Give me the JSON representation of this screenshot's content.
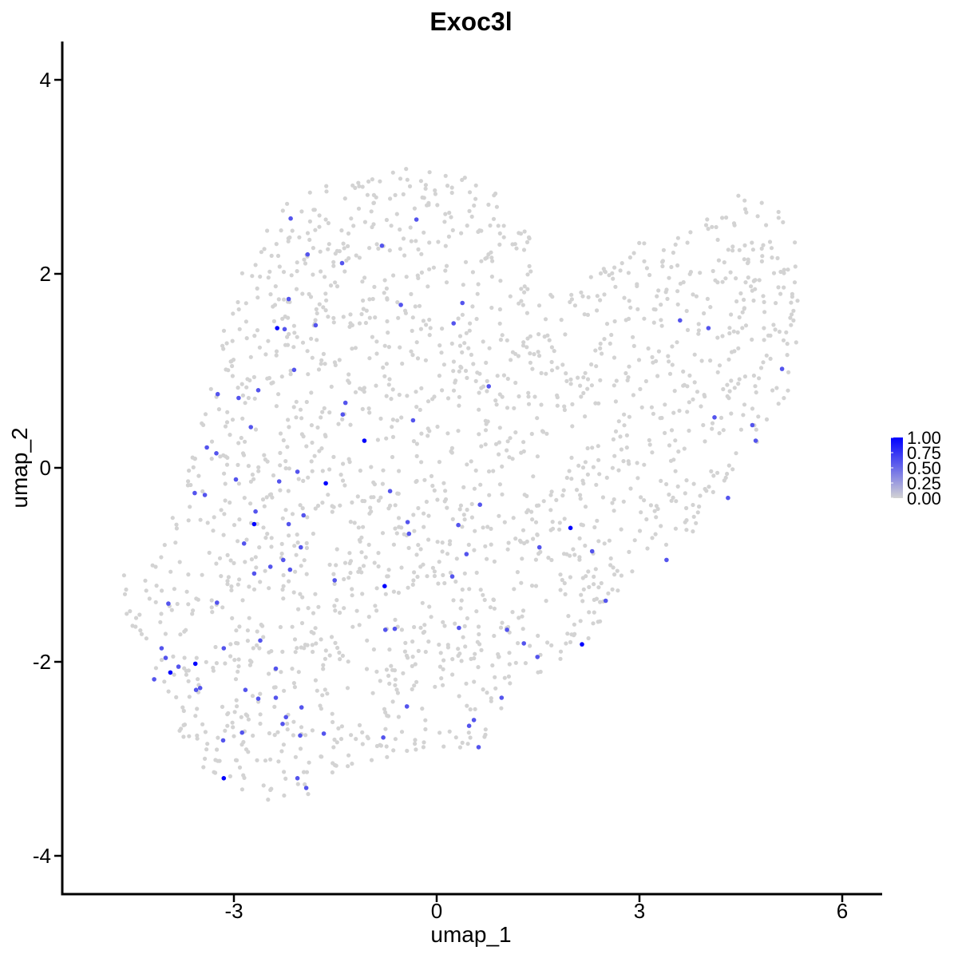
{
  "chart_data": {
    "type": "scatter",
    "title": "Exoc3l",
    "xlabel": "umap_1",
    "ylabel": "umap_2",
    "xlim": [
      -5.5,
      6.6
    ],
    "ylim": [
      -4.4,
      4.4
    ],
    "x_ticks": [
      -3,
      0,
      3,
      6
    ],
    "y_ticks": [
      -4,
      -2,
      0,
      2,
      4
    ],
    "x_tick_labels": [
      "-3",
      "0",
      "3",
      "6"
    ],
    "y_tick_labels": [
      "-4",
      "-2",
      "0",
      "2",
      "4"
    ],
    "grid": false,
    "legend": {
      "placement": "right",
      "type": "colorbar",
      "labels": [
        "1.00",
        "0.75",
        "0.50",
        "0.25",
        "0.00"
      ],
      "values": [
        1.0,
        0.75,
        0.5,
        0.25,
        0.0
      ]
    },
    "colors": {
      "low": "#d3d3d3",
      "high": "#0000ff"
    },
    "background_points_estimate": 1900,
    "expressing_points": [
      {
        "x": -2.36,
        "y": 1.44,
        "v": 1.0
      },
      {
        "x": -1.07,
        "y": 0.28,
        "v": 1.0
      },
      {
        "x": -1.64,
        "y": -0.16,
        "v": 1.0
      },
      {
        "x": -2.7,
        "y": -0.58,
        "v": 1.0
      },
      {
        "x": -0.77,
        "y": -1.22,
        "v": 1.0
      },
      {
        "x": 1.98,
        "y": -0.62,
        "v": 1.0
      },
      {
        "x": 2.15,
        "y": -1.82,
        "v": 1.0
      },
      {
        "x": -3.57,
        "y": -2.02,
        "v": 1.0
      },
      {
        "x": -3.94,
        "y": -2.11,
        "v": 1.0
      },
      {
        "x": -3.15,
        "y": -3.2,
        "v": 1.0
      },
      {
        "x": -2.16,
        "y": 2.57,
        "v": 0.6
      },
      {
        "x": -2.19,
        "y": 1.74,
        "v": 0.6
      },
      {
        "x": -2.25,
        "y": 1.43,
        "v": 0.6
      },
      {
        "x": -1.79,
        "y": 1.47,
        "v": 0.6
      },
      {
        "x": -2.11,
        "y": 1.01,
        "v": 0.6
      },
      {
        "x": -1.91,
        "y": 2.2,
        "v": 0.6
      },
      {
        "x": -1.4,
        "y": 2.11,
        "v": 0.6
      },
      {
        "x": -0.81,
        "y": 2.29,
        "v": 0.6
      },
      {
        "x": -0.3,
        "y": 2.56,
        "v": 0.6
      },
      {
        "x": -0.53,
        "y": 1.68,
        "v": 0.6
      },
      {
        "x": 0.38,
        "y": 1.7,
        "v": 0.6
      },
      {
        "x": 0.25,
        "y": 1.49,
        "v": 0.6
      },
      {
        "x": -3.24,
        "y": 0.76,
        "v": 0.6
      },
      {
        "x": -2.93,
        "y": 0.72,
        "v": 0.6
      },
      {
        "x": -2.64,
        "y": 0.8,
        "v": 0.6
      },
      {
        "x": -2.75,
        "y": 0.42,
        "v": 0.6
      },
      {
        "x": -1.39,
        "y": 0.55,
        "v": 0.6
      },
      {
        "x": -1.35,
        "y": 0.67,
        "v": 0.6
      },
      {
        "x": -0.35,
        "y": 0.49,
        "v": 0.6
      },
      {
        "x": 0.77,
        "y": 0.84,
        "v": 0.6
      },
      {
        "x": -3.4,
        "y": 0.21,
        "v": 0.6
      },
      {
        "x": -3.26,
        "y": 0.15,
        "v": 0.6
      },
      {
        "x": -3.58,
        "y": -0.26,
        "v": 0.6
      },
      {
        "x": -3.43,
        "y": -0.28,
        "v": 0.6
      },
      {
        "x": -2.97,
        "y": -0.12,
        "v": 0.6
      },
      {
        "x": -2.33,
        "y": -0.14,
        "v": 0.6
      },
      {
        "x": -2.06,
        "y": -0.04,
        "v": 0.6
      },
      {
        "x": -2.68,
        "y": -0.45,
        "v": 0.6
      },
      {
        "x": -2.19,
        "y": -0.58,
        "v": 0.6
      },
      {
        "x": -1.97,
        "y": -0.49,
        "v": 0.6
      },
      {
        "x": -2.85,
        "y": -0.78,
        "v": 0.6
      },
      {
        "x": -2.27,
        "y": -0.95,
        "v": 0.6
      },
      {
        "x": -2.01,
        "y": -0.82,
        "v": 0.6
      },
      {
        "x": -2.46,
        "y": -1.02,
        "v": 0.6
      },
      {
        "x": -2.17,
        "y": -1.05,
        "v": 0.6
      },
      {
        "x": -2.7,
        "y": -1.09,
        "v": 0.6
      },
      {
        "x": -1.51,
        "y": -1.16,
        "v": 0.6
      },
      {
        "x": -0.69,
        "y": -0.24,
        "v": 0.6
      },
      {
        "x": -0.43,
        "y": -0.56,
        "v": 0.6
      },
      {
        "x": -0.41,
        "y": -0.68,
        "v": 0.6
      },
      {
        "x": 0.32,
        "y": -0.59,
        "v": 0.6
      },
      {
        "x": 0.64,
        "y": -0.38,
        "v": 0.6
      },
      {
        "x": 0.44,
        "y": -0.89,
        "v": 0.6
      },
      {
        "x": 0.23,
        "y": -1.12,
        "v": 0.6
      },
      {
        "x": 1.52,
        "y": -0.82,
        "v": 0.6
      },
      {
        "x": 2.3,
        "y": -0.86,
        "v": 0.6
      },
      {
        "x": 2.5,
        "y": -1.37,
        "v": 0.6
      },
      {
        "x": 3.4,
        "y": -0.95,
        "v": 0.6
      },
      {
        "x": 3.6,
        "y": 1.52,
        "v": 0.6
      },
      {
        "x": 4.02,
        "y": 1.44,
        "v": 0.6
      },
      {
        "x": 4.11,
        "y": 0.52,
        "v": 0.6
      },
      {
        "x": 5.11,
        "y": 1.02,
        "v": 0.6
      },
      {
        "x": 4.67,
        "y": 0.44,
        "v": 0.6
      },
      {
        "x": 4.72,
        "y": 0.28,
        "v": 0.6
      },
      {
        "x": 4.31,
        "y": -0.31,
        "v": 0.6
      },
      {
        "x": -3.97,
        "y": -1.4,
        "v": 0.6
      },
      {
        "x": -3.15,
        "y": -1.86,
        "v": 0.6
      },
      {
        "x": -3.25,
        "y": -1.39,
        "v": 0.6
      },
      {
        "x": -4.07,
        "y": -1.86,
        "v": 0.6
      },
      {
        "x": -4.01,
        "y": -1.96,
        "v": 0.6
      },
      {
        "x": -3.82,
        "y": -2.05,
        "v": 0.6
      },
      {
        "x": -4.18,
        "y": -2.18,
        "v": 0.6
      },
      {
        "x": -3.56,
        "y": -2.29,
        "v": 0.6
      },
      {
        "x": -3.5,
        "y": -2.27,
        "v": 0.6
      },
      {
        "x": -2.61,
        "y": -1.78,
        "v": 0.6
      },
      {
        "x": -2.38,
        "y": -2.07,
        "v": 0.6
      },
      {
        "x": -2.83,
        "y": -2.29,
        "v": 0.6
      },
      {
        "x": -2.64,
        "y": -2.38,
        "v": 0.6
      },
      {
        "x": -2.38,
        "y": -2.37,
        "v": 0.6
      },
      {
        "x": -2.0,
        "y": -2.47,
        "v": 0.6
      },
      {
        "x": -2.23,
        "y": -2.57,
        "v": 0.6
      },
      {
        "x": -2.28,
        "y": -2.64,
        "v": 0.6
      },
      {
        "x": -2.02,
        "y": -2.76,
        "v": 0.6
      },
      {
        "x": -1.67,
        "y": -2.74,
        "v": 0.6
      },
      {
        "x": -3.16,
        "y": -2.81,
        "v": 0.6
      },
      {
        "x": -2.88,
        "y": -2.73,
        "v": 0.6
      },
      {
        "x": -2.06,
        "y": -3.2,
        "v": 0.6
      },
      {
        "x": -1.93,
        "y": -3.3,
        "v": 0.6
      },
      {
        "x": -0.62,
        "y": -1.66,
        "v": 0.6
      },
      {
        "x": -0.76,
        "y": -1.67,
        "v": 0.6
      },
      {
        "x": -0.44,
        "y": -2.46,
        "v": 0.6
      },
      {
        "x": -0.79,
        "y": -2.78,
        "v": 0.6
      },
      {
        "x": 0.33,
        "y": -1.65,
        "v": 0.6
      },
      {
        "x": 0.96,
        "y": -2.37,
        "v": 0.6
      },
      {
        "x": 0.48,
        "y": -2.66,
        "v": 0.6
      },
      {
        "x": 0.55,
        "y": -2.6,
        "v": 0.6
      },
      {
        "x": 0.62,
        "y": -2.88,
        "v": 0.6
      },
      {
        "x": 1.04,
        "y": -1.67,
        "v": 0.6
      },
      {
        "x": 1.29,
        "y": -1.81,
        "v": 0.6
      },
      {
        "x": 1.49,
        "y": -1.95,
        "v": 0.6
      }
    ]
  }
}
